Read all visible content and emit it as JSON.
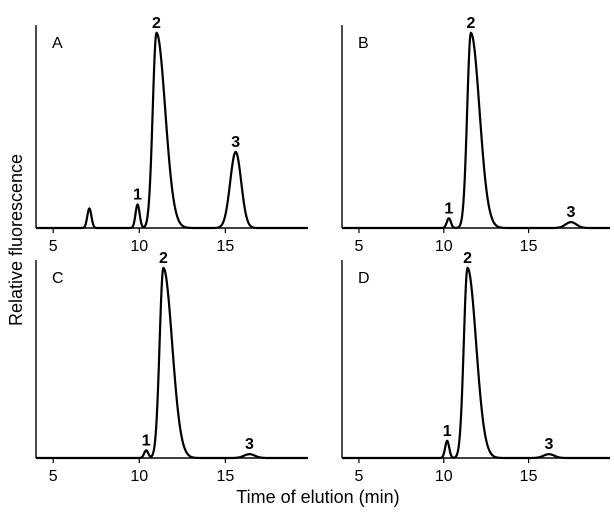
{
  "figure": {
    "ylabel": "Relative fluorescence",
    "xlabel": "Time of elution (min)"
  },
  "chart_data": [
    {
      "type": "line",
      "panel": "A",
      "xlim": [
        4,
        19.8
      ],
      "xticks": [
        5,
        10,
        15
      ],
      "grid": false,
      "peaks": [
        {
          "label": "",
          "t": 7.1,
          "h": 0.1
        },
        {
          "label": "1",
          "t": 9.9,
          "h": 0.12
        },
        {
          "label": "2",
          "t": 11.0,
          "h": 1.0
        },
        {
          "label": "3",
          "t": 15.6,
          "h": 0.39
        }
      ]
    },
    {
      "type": "line",
      "panel": "B",
      "xlim": [
        4,
        19.8
      ],
      "xticks": [
        5,
        10,
        15
      ],
      "grid": false,
      "peaks": [
        {
          "label": "1",
          "t": 10.3,
          "h": 0.05
        },
        {
          "label": "2",
          "t": 11.6,
          "h": 1.0
        },
        {
          "label": "3",
          "t": 17.5,
          "h": 0.03
        }
      ]
    },
    {
      "type": "line",
      "panel": "C",
      "xlim": [
        4,
        19.8
      ],
      "xticks": [
        5,
        10,
        15
      ],
      "grid": false,
      "peaks": [
        {
          "label": "1",
          "t": 10.4,
          "h": 0.04
        },
        {
          "label": "2",
          "t": 11.4,
          "h": 1.0
        },
        {
          "label": "3",
          "t": 16.4,
          "h": 0.02
        }
      ]
    },
    {
      "type": "line",
      "panel": "D",
      "xlim": [
        4,
        19.8
      ],
      "xticks": [
        5,
        10,
        15
      ],
      "grid": false,
      "peaks": [
        {
          "label": "1",
          "t": 10.2,
          "h": 0.09
        },
        {
          "label": "2",
          "t": 11.4,
          "h": 1.0
        },
        {
          "label": "3",
          "t": 16.2,
          "h": 0.02
        }
      ]
    }
  ]
}
